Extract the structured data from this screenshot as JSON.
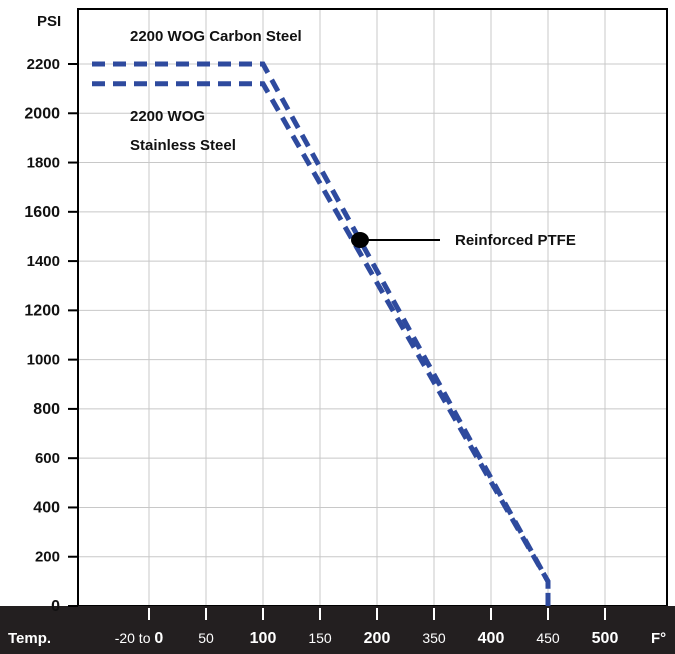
{
  "chart_data": {
    "type": "line",
    "ylabel": "PSI",
    "xlabel": "Temp.",
    "x_unit": "F°",
    "x_ticks": [
      {
        "label": "-20 to 0",
        "prefix": "-20 to ",
        "main": "0",
        "bold": true
      },
      {
        "label": "50",
        "bold": false
      },
      {
        "label": "100",
        "bold": true
      },
      {
        "label": "150",
        "bold": false
      },
      {
        "label": "200",
        "bold": true
      },
      {
        "label": "350",
        "bold": false
      },
      {
        "label": "400",
        "bold": true
      },
      {
        "label": "450",
        "bold": false
      },
      {
        "label": "500",
        "bold": true
      }
    ],
    "y_ticks": [
      {
        "label": "0",
        "value": 0,
        "bold": true
      },
      {
        "label": "200",
        "value": 200,
        "bold": false
      },
      {
        "label": "400",
        "value": 400,
        "bold": true
      },
      {
        "label": "600",
        "value": 600,
        "bold": false
      },
      {
        "label": "800",
        "value": 800,
        "bold": true
      },
      {
        "label": "1000",
        "value": 1000,
        "bold": false
      },
      {
        "label": "1200",
        "value": 1200,
        "bold": true
      },
      {
        "label": "1400",
        "value": 1400,
        "bold": false
      },
      {
        "label": "1600",
        "value": 1600,
        "bold": true
      },
      {
        "label": "1800",
        "value": 1800,
        "bold": false
      },
      {
        "label": "2000",
        "value": 2000,
        "bold": true
      },
      {
        "label": "2200",
        "value": 2200,
        "bold": false
      }
    ],
    "ylim": [
      0,
      2200
    ],
    "grid": true,
    "series": [
      {
        "name": "2200 WOG Carbon Steel",
        "color": "#2e4a9e",
        "points": [
          [
            -20,
            2200
          ],
          [
            100,
            2200
          ],
          [
            450,
            100
          ],
          [
            450,
            0
          ]
        ]
      },
      {
        "name": "2200 WOG Stainless Steel",
        "color": "#2e4a9e",
        "points": [
          [
            -20,
            2120
          ],
          [
            100,
            2120
          ],
          [
            450,
            100
          ],
          [
            450,
            0
          ]
        ]
      }
    ],
    "annotations": [
      {
        "text": "2200 WOG Carbon Steel"
      },
      {
        "text": "2200 WOG",
        "text2": "Stainless Steel"
      },
      {
        "text": "Reinforced PTFE",
        "point": [
          200,
          1490
        ]
      }
    ]
  }
}
